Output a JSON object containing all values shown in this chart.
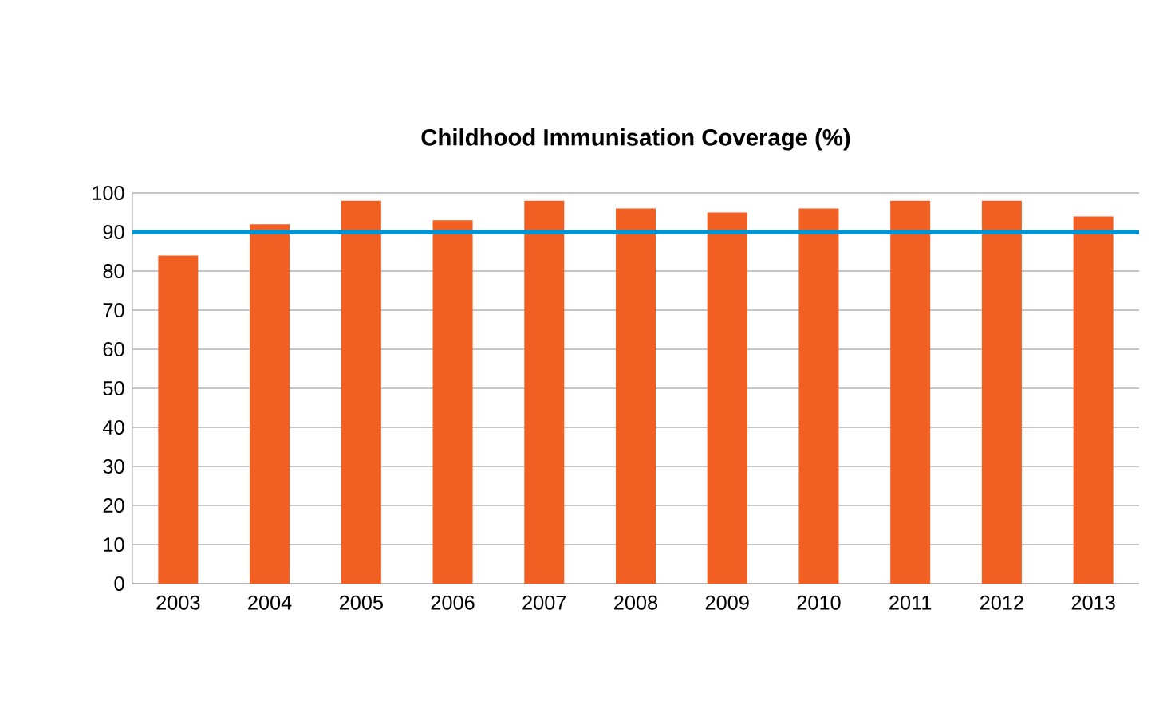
{
  "chart_data": {
    "type": "bar",
    "title": "Childhood Immunisation Coverage (%)",
    "categories": [
      "2003",
      "2004",
      "2005",
      "2006",
      "2007",
      "2008",
      "2009",
      "2010",
      "2011",
      "2012",
      "2013"
    ],
    "values": [
      84,
      92,
      98,
      93,
      98,
      96,
      95,
      96,
      98,
      98,
      94
    ],
    "color": "#f15f22",
    "ylim": [
      0,
      100
    ],
    "yticks": [
      0,
      10,
      20,
      30,
      40,
      50,
      60,
      70,
      80,
      90,
      100
    ],
    "grid": "y",
    "ref_lines": [
      {
        "axis": "y",
        "value": 90,
        "color": "#0095d5"
      }
    ]
  }
}
